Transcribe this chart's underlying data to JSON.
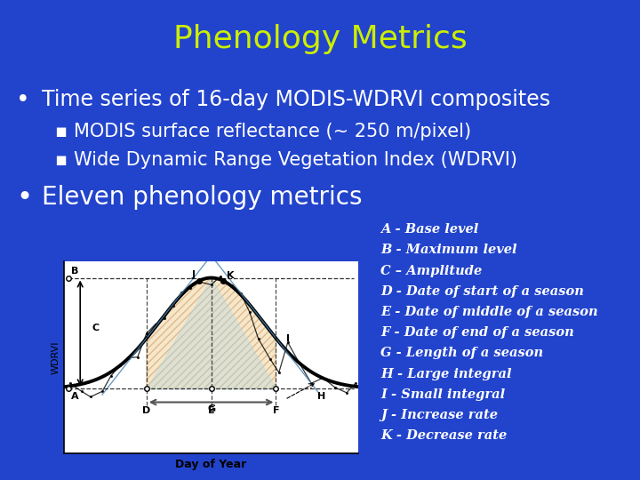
{
  "title": "Phenology Metrics",
  "title_color": "#CCEE00",
  "bg_color": "#2244CC",
  "bullet1": "Time series of 16-day MODIS-WDRVI composites",
  "sub1": "MODIS surface reflectance (~ 250 m/pixel)",
  "sub2": "Wide Dynamic Range Vegetation Index (WDRVI)",
  "bullet2": "Eleven phenology metrics",
  "legend_items": [
    "A - Base level",
    "B - Maximum level",
    "C – Amplitude",
    "D - Date of start of a season",
    "E - Date of middle of a season",
    "F - Date of end of a season",
    "G - Length of a season",
    "H - Large integral",
    "I - Small integral",
    "J - Increase rate",
    "K - Decrease rate"
  ],
  "text_color": "#FFFFFF",
  "legend_color": "#FFFFFF",
  "title_fontsize": 26,
  "bullet_fontsize": 17,
  "sub_fontsize": 15,
  "bullet2_fontsize": 20,
  "legend_fontsize": 10.5
}
